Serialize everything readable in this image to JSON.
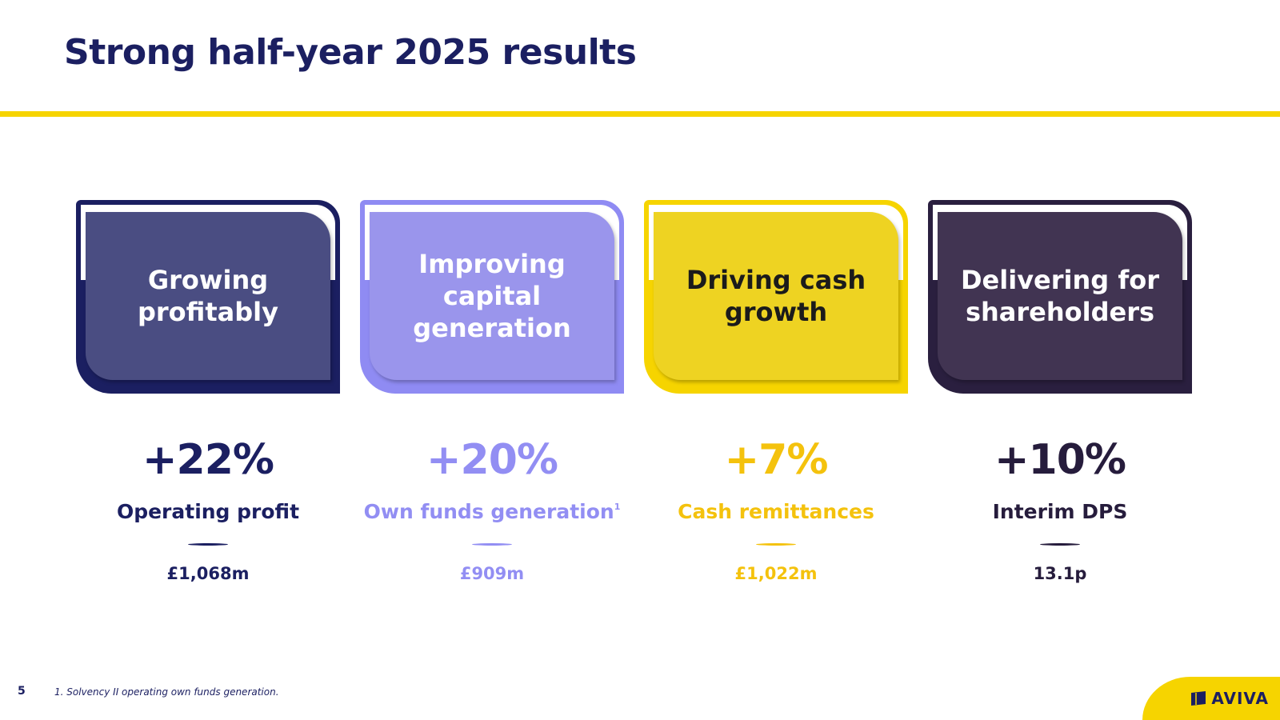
{
  "slide": {
    "title": "Strong half-year 2025 results",
    "page_number": "5",
    "footnote": "1. Solvency II operating own funds generation."
  },
  "pillars": [
    {
      "heading": "Growing profitably",
      "change": "+22%",
      "metric": "Operating profit",
      "footnote_marker": "",
      "amount": "£1,068m",
      "colors": {
        "back": "#1b1f61",
        "front": "#4a4d82",
        "text": "#ffffff",
        "accent": "#1b1f61"
      }
    },
    {
      "heading": "Improving capital generation",
      "change": "+20%",
      "metric": "Own funds generation",
      "footnote_marker": "1",
      "amount": "£909m",
      "colors": {
        "back": "#8f8bf3",
        "front": "#9a95ec",
        "text": "#ffffff",
        "accent": "#928ef3"
      }
    },
    {
      "heading": "Driving cash growth",
      "change": "+7%",
      "metric": "Cash remittances",
      "footnote_marker": "",
      "amount": "£1,022m",
      "colors": {
        "back": "#f6d400",
        "front": "#eed322",
        "text": "#1b1b1b",
        "accent": "#f4c20d"
      }
    },
    {
      "heading": "Delivering for shareholders",
      "change": "+10%",
      "metric": "Interim DPS",
      "footnote_marker": "",
      "amount": "13.1p",
      "colors": {
        "back": "#2a1f3f",
        "front": "#413452",
        "text": "#ffffff",
        "accent": "#261c3c"
      }
    }
  ],
  "logo": {
    "text": "AVIVA",
    "icon": "aviva-flag-icon"
  }
}
